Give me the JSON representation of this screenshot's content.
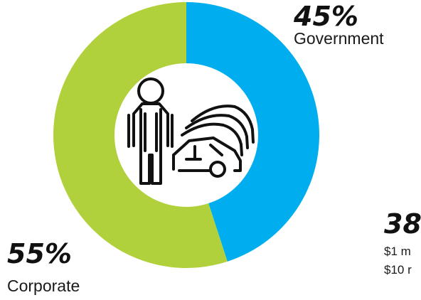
{
  "chart_data": {
    "type": "pie",
    "variant": "donut",
    "slices": [
      {
        "label": "Government",
        "value": 45,
        "display": "45%",
        "color": "#00aeef"
      },
      {
        "label": "Corporate",
        "value": 55,
        "display": "55%",
        "color": "#b0d13b"
      }
    ],
    "center_icon": "person-with-cars-icon",
    "partial_annotation": {
      "value_text": "38",
      "lines": [
        "$1 m",
        "$10 r"
      ]
    }
  }
}
